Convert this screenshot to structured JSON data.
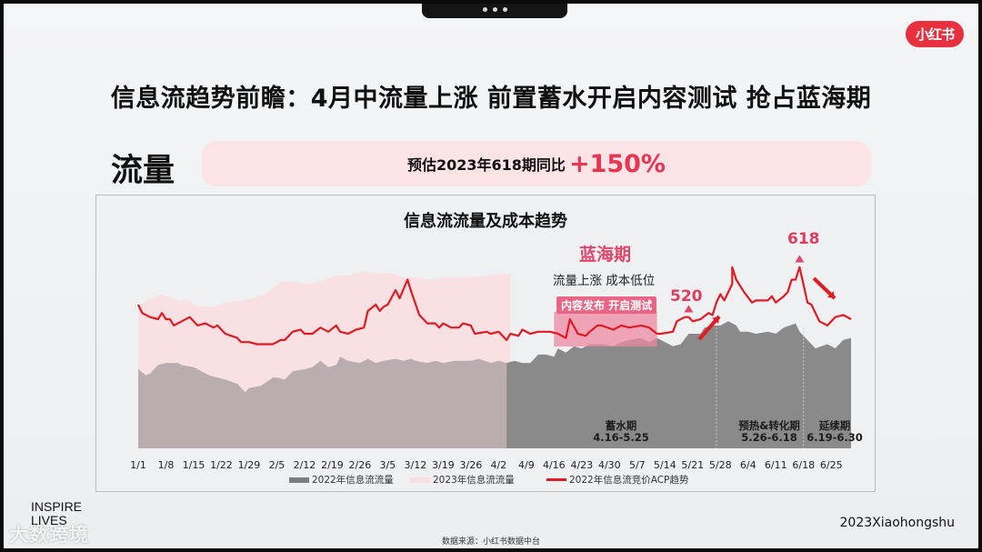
{
  "window": {
    "notch_dots": 3
  },
  "brand": {
    "logo_text": "小红书",
    "color": "#e9303f"
  },
  "slide": {
    "title": "信息流趋势前瞻：4月中流量上涨 前置蓄水开启内容测试 抢占蓝海期",
    "section_label": "流量",
    "banner": {
      "text": "预估2023年618期同比",
      "highlight": "+150%"
    }
  },
  "footer": {
    "left_line1": "INSPIRE",
    "left_line2": "LIVES",
    "watermark": "大数跨境",
    "right": "2023Xiaohongshu",
    "source": "数据来源：小红书数据中台"
  },
  "colors": {
    "gray_2022": "#8a8a8a",
    "gray_2022_muted": "#b9adaf",
    "pink_2023": "#f9dfe2",
    "acp_line": "#e01b24",
    "accent": "#e0466c",
    "tag_bg": "#e96585"
  },
  "annotations": {
    "blue_sea": "蓝海期",
    "blue_sea_sub": "流量上涨 成本低位",
    "content_tag": "内容发布 开启测试",
    "label_520": "520",
    "label_618": "618"
  },
  "phases": [
    {
      "name": "蓄水期",
      "range": "4.16-5.25"
    },
    {
      "name": "预热&转化期",
      "range": "5.26-6.18"
    },
    {
      "name": "延续期",
      "range": "6.19-6.30"
    }
  ],
  "chart_data": {
    "type": "area",
    "title": "信息流流量及成本趋势",
    "xlabel": "",
    "ylabel": "",
    "x_range_days": [
      0,
      180
    ],
    "ylim": [
      0,
      100
    ],
    "y_unit": "relative index (axis ticks illegible)",
    "categories": [
      "1/1",
      "1/8",
      "1/15",
      "1/22",
      "1/29",
      "2/5",
      "2/12",
      "2/19",
      "2/26",
      "3/5",
      "3/12",
      "3/19",
      "3/26",
      "4/2",
      "4/9",
      "4/16",
      "4/23",
      "4/30",
      "5/7",
      "5/14",
      "5/21",
      "5/28",
      "6/4",
      "6/11",
      "6/18",
      "6/25"
    ],
    "right_axis_ticks": [
      "",
      "",
      "",
      "",
      "",
      "",
      ""
    ],
    "legend": [
      "2022年信息流流量",
      "2023年信息流流量",
      "2022年信息流竞价ACP趋势"
    ],
    "legend_position": "bottom",
    "grid": false,
    "series": [
      {
        "name": "2022年信息流流量",
        "type": "area",
        "color": "#8a8a8a",
        "points": [
          [
            0,
            38
          ],
          [
            2,
            35
          ],
          [
            3,
            36
          ],
          [
            4,
            38
          ],
          [
            5,
            40
          ],
          [
            7,
            41
          ],
          [
            10,
            41
          ],
          [
            11,
            40
          ],
          [
            14,
            39
          ],
          [
            15,
            38
          ],
          [
            18,
            35
          ],
          [
            20,
            34
          ],
          [
            22,
            33
          ],
          [
            25,
            31
          ],
          [
            27,
            27
          ],
          [
            28,
            29
          ],
          [
            31,
            30
          ],
          [
            34,
            34
          ],
          [
            35,
            34
          ],
          [
            37,
            33
          ],
          [
            39,
            37
          ],
          [
            42,
            38
          ],
          [
            44,
            39
          ],
          [
            46,
            42
          ],
          [
            48,
            39
          ],
          [
            50,
            40
          ],
          [
            51,
            44
          ],
          [
            53,
            42
          ],
          [
            56,
            41
          ],
          [
            58,
            43
          ],
          [
            60,
            41
          ],
          [
            62,
            42
          ],
          [
            65,
            43
          ],
          [
            67,
            42
          ],
          [
            69,
            43
          ],
          [
            70,
            42
          ],
          [
            73,
            41
          ],
          [
            75,
            42
          ],
          [
            77,
            41
          ],
          [
            80,
            42
          ],
          [
            82,
            42
          ],
          [
            84,
            42
          ],
          [
            86,
            43
          ],
          [
            89,
            41
          ],
          [
            91,
            42
          ],
          [
            93,
            41
          ],
          [
            95,
            42
          ],
          [
            97,
            41
          ],
          [
            99,
            41
          ],
          [
            101,
            45
          ],
          [
            103,
            45
          ],
          [
            105,
            44
          ],
          [
            106,
            48
          ],
          [
            108,
            46
          ],
          [
            110,
            49
          ],
          [
            112,
            48
          ],
          [
            114,
            50
          ],
          [
            115,
            50
          ],
          [
            117,
            50
          ],
          [
            120,
            49
          ],
          [
            122,
            51
          ],
          [
            124,
            52
          ],
          [
            127,
            53
          ],
          [
            129,
            51
          ],
          [
            131,
            53
          ],
          [
            132,
            52
          ],
          [
            135,
            49
          ],
          [
            137,
            50
          ],
          [
            139,
            55
          ],
          [
            142,
            55
          ],
          [
            143,
            58
          ],
          [
            145,
            59
          ],
          [
            147,
            59
          ],
          [
            149,
            61
          ],
          [
            151,
            59
          ],
          [
            152,
            56
          ],
          [
            154,
            56
          ],
          [
            156,
            55
          ],
          [
            159,
            56
          ],
          [
            161,
            55
          ],
          [
            163,
            58
          ],
          [
            166,
            60
          ],
          [
            167,
            56
          ],
          [
            169,
            52
          ],
          [
            171,
            48
          ],
          [
            174,
            50
          ],
          [
            176,
            48
          ],
          [
            178,
            52
          ],
          [
            180,
            53
          ]
        ]
      },
      {
        "name": "2023年信息流流量",
        "type": "area",
        "color": "#f9dfe2",
        "x_end_day": 94,
        "points": [
          [
            0,
            68
          ],
          [
            3,
            72
          ],
          [
            6,
            74
          ],
          [
            10,
            71
          ],
          [
            13,
            71
          ],
          [
            15,
            68
          ],
          [
            19,
            68
          ],
          [
            22,
            70
          ],
          [
            26,
            71
          ],
          [
            29,
            72
          ],
          [
            33,
            75
          ],
          [
            36,
            80
          ],
          [
            39,
            80
          ],
          [
            43,
            79
          ],
          [
            46,
            80
          ],
          [
            50,
            83
          ],
          [
            53,
            83
          ],
          [
            57,
            85
          ],
          [
            60,
            84
          ],
          [
            64,
            84
          ],
          [
            67,
            82
          ],
          [
            70,
            82
          ],
          [
            74,
            81
          ],
          [
            78,
            82
          ],
          [
            83,
            82
          ],
          [
            88,
            83
          ],
          [
            94,
            84
          ]
        ]
      },
      {
        "name": "2022年信息流竞价ACP趋势",
        "type": "line",
        "color": "#e01b24",
        "points": [
          [
            0,
            69
          ],
          [
            1,
            65
          ],
          [
            3,
            63
          ],
          [
            5,
            62
          ],
          [
            6,
            65
          ],
          [
            7,
            62
          ],
          [
            8,
            62
          ],
          [
            9,
            59
          ],
          [
            11,
            61
          ],
          [
            13,
            63
          ],
          [
            15,
            59
          ],
          [
            17,
            60
          ],
          [
            19,
            58
          ],
          [
            20,
            59
          ],
          [
            22,
            55
          ],
          [
            25,
            53
          ],
          [
            26,
            51
          ],
          [
            28,
            51
          ],
          [
            30,
            50
          ],
          [
            32,
            50
          ],
          [
            34,
            50
          ],
          [
            36,
            52
          ],
          [
            37,
            52
          ],
          [
            39,
            56
          ],
          [
            41,
            57
          ],
          [
            42,
            55
          ],
          [
            44,
            55
          ],
          [
            46,
            58
          ],
          [
            48,
            56
          ],
          [
            50,
            59
          ],
          [
            51,
            56
          ],
          [
            53,
            55
          ],
          [
            55,
            57
          ],
          [
            57,
            58
          ],
          [
            58,
            66
          ],
          [
            60,
            69
          ],
          [
            61,
            66
          ],
          [
            62,
            68
          ],
          [
            63,
            69
          ],
          [
            65,
            76
          ],
          [
            66,
            72
          ],
          [
            68,
            81
          ],
          [
            69,
            75
          ],
          [
            71,
            64
          ],
          [
            73,
            60
          ],
          [
            75,
            60
          ],
          [
            76,
            58
          ],
          [
            77,
            60
          ],
          [
            79,
            58
          ],
          [
            81,
            58
          ],
          [
            82,
            60
          ],
          [
            84,
            59
          ],
          [
            85,
            55
          ],
          [
            88,
            56
          ],
          [
            89,
            55
          ],
          [
            91,
            56
          ],
          [
            93,
            52
          ],
          [
            94,
            55
          ],
          [
            96,
            54
          ],
          [
            97,
            57
          ],
          [
            99,
            55
          ],
          [
            101,
            56
          ],
          [
            104,
            56
          ],
          [
            106,
            55
          ],
          [
            108,
            53
          ],
          [
            109,
            62
          ],
          [
            111,
            55
          ],
          [
            113,
            54
          ],
          [
            114,
            56
          ],
          [
            116,
            59
          ],
          [
            117,
            59
          ],
          [
            120,
            57
          ],
          [
            122,
            59
          ],
          [
            124,
            58
          ],
          [
            127,
            59
          ],
          [
            129,
            58
          ],
          [
            131,
            55
          ],
          [
            132,
            55
          ],
          [
            135,
            56
          ],
          [
            136,
            61
          ],
          [
            138,
            63
          ],
          [
            139,
            63
          ],
          [
            140,
            61
          ],
          [
            142,
            62
          ],
          [
            144,
            65
          ],
          [
            145,
            64
          ],
          [
            146,
            70
          ],
          [
            147,
            74
          ],
          [
            148,
            71
          ],
          [
            150,
            79
          ],
          [
            150,
            87
          ],
          [
            151,
            81
          ],
          [
            153,
            75
          ],
          [
            155,
            70
          ],
          [
            156,
            71
          ],
          [
            159,
            71
          ],
          [
            160,
            73
          ],
          [
            161,
            70
          ],
          [
            163,
            73
          ],
          [
            164,
            75
          ],
          [
            165,
            81
          ],
          [
            166,
            81
          ],
          [
            167,
            87
          ],
          [
            169,
            70
          ],
          [
            170,
            69
          ],
          [
            171,
            65
          ],
          [
            172,
            61
          ],
          [
            174,
            59
          ],
          [
            176,
            63
          ],
          [
            178,
            64
          ],
          [
            180,
            62
          ]
        ]
      }
    ],
    "annotations": [
      {
        "text": "蓝海期",
        "x_day": 112
      },
      {
        "text": "流量上涨 成本低位",
        "x_day": 112
      },
      {
        "text": "内容发布 开启测试",
        "x_range_days": [
          105,
          131
        ]
      },
      {
        "text": "520",
        "x_day": 139,
        "marker": "triangle-up"
      },
      {
        "text": "618",
        "x_day": 167,
        "marker": "triangle-up"
      },
      {
        "text": "蓄水期 4.16-5.25",
        "x_range_days": [
          105,
          145
        ]
      },
      {
        "text": "预热&转化期 5.26-6.18",
        "x_range_days": [
          146,
          168
        ],
        "divider": "dashed"
      },
      {
        "text": "延续期 6.19-6.30",
        "x_range_days": [
          169,
          180
        ],
        "divider": "dashed"
      }
    ]
  }
}
